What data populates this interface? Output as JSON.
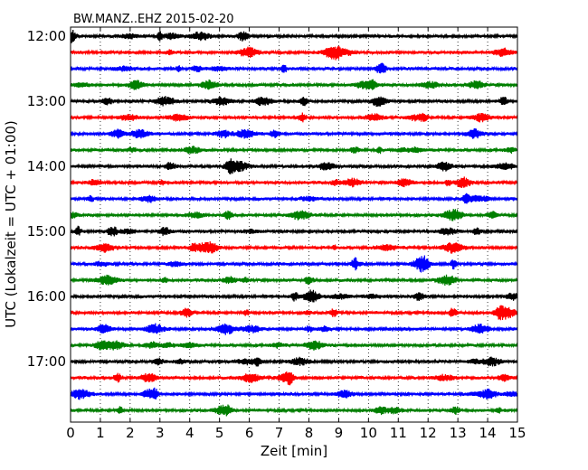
{
  "chart_data": {
    "type": "line",
    "title": "BW.MANZ..EHZ 2015-02-20",
    "xlabel": "Zeit  [min]",
    "ylabel": "UTC (Lokalzeit = UTC + 01:00)",
    "xlim": [
      0,
      15
    ],
    "x_ticks": [
      "0",
      "1",
      "2",
      "3",
      "4",
      "5",
      "6",
      "7",
      "8",
      "9",
      "10",
      "11",
      "12",
      "13",
      "14",
      "15"
    ],
    "y_ticks": [
      "12:00",
      "13:00",
      "14:00",
      "15:00",
      "16:00",
      "17:00"
    ],
    "x_grid": "dotted vertical lines at each minute",
    "trace_colors": [
      "#000000",
      "#ff0000",
      "#0000ff",
      "#007f00"
    ],
    "traces_per_hour": 4,
    "minutes_per_trace": 15,
    "series": [
      {
        "start": "12:00"
      },
      {
        "start": "12:15"
      },
      {
        "start": "12:30"
      },
      {
        "start": "12:45"
      },
      {
        "start": "13:00"
      },
      {
        "start": "13:15"
      },
      {
        "start": "13:30"
      },
      {
        "start": "13:45"
      },
      {
        "start": "14:00"
      },
      {
        "start": "14:15"
      },
      {
        "start": "14:30"
      },
      {
        "start": "14:45"
      },
      {
        "start": "15:00"
      },
      {
        "start": "15:15"
      },
      {
        "start": "15:30"
      },
      {
        "start": "15:45"
      },
      {
        "start": "16:00"
      },
      {
        "start": "16:15"
      },
      {
        "start": "16:30"
      },
      {
        "start": "16:45"
      },
      {
        "start": "17:00"
      },
      {
        "start": "17:15"
      },
      {
        "start": "17:30"
      },
      {
        "start": "17:45"
      }
    ]
  }
}
